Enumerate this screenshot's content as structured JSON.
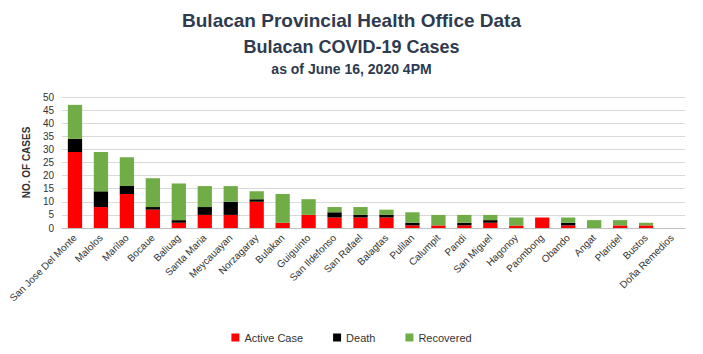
{
  "chart_data": {
    "type": "bar",
    "title": "Bulacan Provincial Health Office Data",
    "subtitle": [
      "Bulacan COVID-19 Cases",
      "as of June 16, 2020 4PM"
    ],
    "y_label": "NO. OF CASES",
    "categories": [
      "San Jose Del Monte",
      "Malolos",
      "Marilao",
      "Bocaue",
      "Baliuag",
      "Santa Maria",
      "Meycauayan",
      "Norzagaray",
      "Bulakan",
      "Guiguinto",
      "San Ildefonso",
      "San Rafael",
      "Balagtas",
      "Pulilan",
      "Calumpit",
      "Pandi",
      "San Miguel",
      "Hagonoy",
      "Paombong",
      "Obando",
      "Angat",
      "Plaridel",
      "Bustos",
      "Doña Remedios"
    ],
    "series": [
      {
        "name": "Active Case",
        "color": "#ff0000",
        "values": [
          29,
          8,
          13,
          7,
          2,
          5,
          5,
          10,
          2,
          5,
          4,
          4,
          4,
          1,
          1,
          1,
          2,
          1,
          4,
          1,
          0,
          1,
          1,
          0
        ]
      },
      {
        "name": "Death",
        "color": "#000000",
        "values": [
          5,
          6,
          3,
          1,
          1,
          3,
          5,
          1,
          0,
          0,
          2,
          1,
          1,
          1,
          0,
          1,
          1,
          0,
          0,
          1,
          0,
          0,
          0,
          0
        ]
      },
      {
        "name": "Recovered",
        "color": "#70ad47",
        "values": [
          13,
          15,
          11,
          11,
          14,
          8,
          6,
          3,
          11,
          6,
          2,
          3,
          2,
          4,
          4,
          3,
          2,
          3,
          0,
          2,
          3,
          2,
          1,
          0
        ]
      }
    ],
    "stacked": true,
    "ylim": [
      0,
      50
    ],
    "yticks": [
      0,
      5,
      10,
      15,
      20,
      25,
      30,
      35,
      40,
      45,
      50
    ],
    "grid": true,
    "legend": "bottom"
  }
}
